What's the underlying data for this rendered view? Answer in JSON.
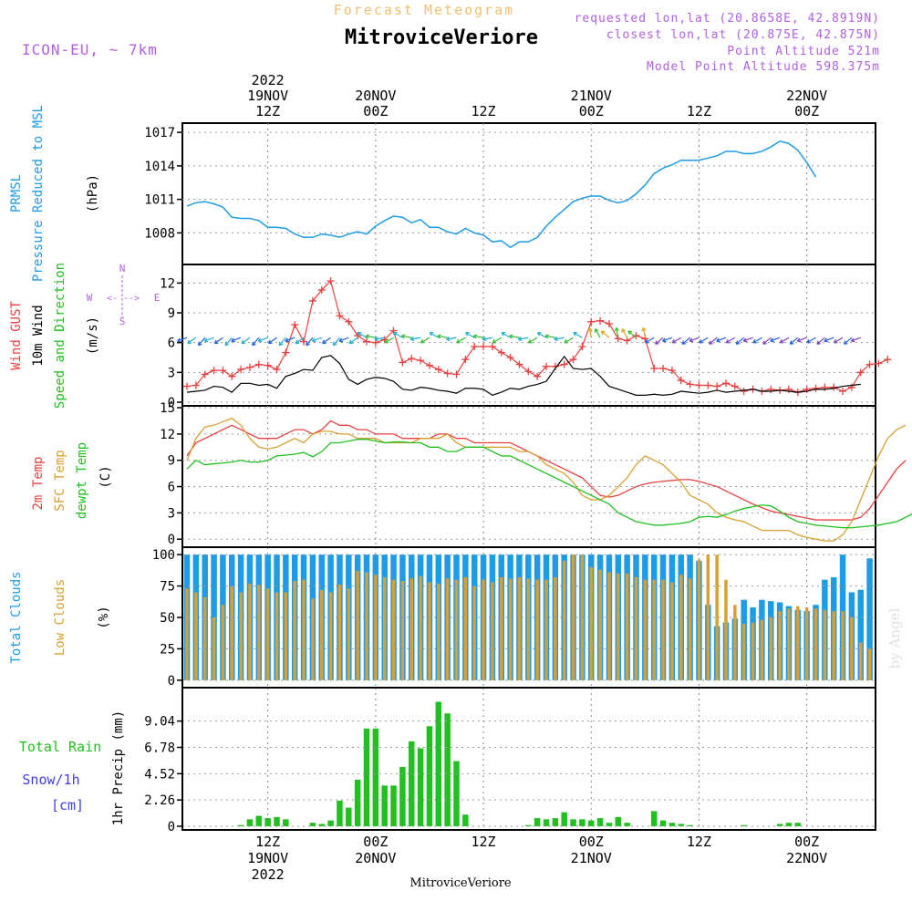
{
  "header": {
    "title": "MitroviceVeriore",
    "subtitle": "Forecast Meteogram",
    "model": "ICON-EU, ~ 7km",
    "requested": "requested lon,lat (20.8658E, 42.8919N)",
    "closest": "closest lon,lat (20.875E, 42.875N)",
    "closest_partial": "closest lon,lat (20.875E, 42.875N)",
    "point_alt": "Point Altitude 521m",
    "model_alt": "Model Point Altitude 598.375m",
    "footer": "MitroviceVeriore",
    "watermark": "by Angel",
    "colors": {
      "blue": "#1e9be6",
      "orange": "#f0c070",
      "purple": "#b060e0",
      "red": "#e84040",
      "green": "#20c020",
      "black": "#000000"
    }
  },
  "axes": {
    "top_year": "2022",
    "top_ticks": [
      {
        "h": 9,
        "day": "19NOV",
        "hour": "12Z"
      },
      {
        "h": 21,
        "day": "20NOV",
        "hour": "00Z"
      },
      {
        "h": 33,
        "day": "",
        "hour": "12Z"
      },
      {
        "h": 45,
        "day": "21NOV",
        "hour": "00Z"
      },
      {
        "h": 57,
        "day": "",
        "hour": "12Z"
      },
      {
        "h": 69,
        "day": "22NOV",
        "hour": "00Z"
      }
    ],
    "bottom_ticks": [
      {
        "h": 9,
        "hour": "12Z",
        "day": "19NOV"
      },
      {
        "h": 21,
        "hour": "00Z",
        "day": "20NOV"
      },
      {
        "h": 33,
        "hour": "12Z",
        "day": ""
      },
      {
        "h": 45,
        "hour": "00Z",
        "day": "21NOV"
      },
      {
        "h": 57,
        "hour": "12Z",
        "day": ""
      },
      {
        "h": 69,
        "hour": "00Z",
        "day": "22NOV"
      }
    ],
    "bottom_year": "2022"
  },
  "chart_data": [
    {
      "type": "line",
      "panel": "pressure",
      "ylabels": [
        "PRMSL",
        "Pressure Reduced to MSL",
        "(hPa)"
      ],
      "ylim": [
        1005.5,
        1017.5
      ],
      "yticks": [
        1008,
        1011,
        1014,
        1017
      ],
      "x_hours": [
        0,
        1,
        2,
        3,
        4,
        5,
        6,
        7,
        8,
        9,
        10,
        11,
        12,
        13,
        14,
        15,
        16,
        17,
        18,
        19,
        20,
        21,
        22,
        23,
        24,
        25,
        26,
        27,
        28,
        29,
        30,
        31,
        32,
        33,
        34,
        35,
        36,
        37,
        38,
        39,
        40,
        41,
        42,
        43,
        44,
        45,
        46,
        47,
        48,
        49,
        50,
        51,
        52,
        53,
        54,
        55,
        56,
        57,
        58,
        59,
        60,
        61,
        62,
        63,
        64,
        65,
        66,
        67,
        68,
        69,
        70,
        71,
        72,
        73,
        74,
        75,
        76
      ],
      "series": [
        {
          "color": "#1e9be6",
          "values": [
            1010.4,
            1010.7,
            1010.8,
            1010.6,
            1010.3,
            1009.4,
            1009.3,
            1009.3,
            1009.1,
            1008.5,
            1008.5,
            1008.4,
            1007.9,
            1007.6,
            1007.6,
            1007.9,
            1007.8,
            1007.6,
            1007.9,
            1008.1,
            1007.9,
            1008.6,
            1009.1,
            1009.5,
            1009.4,
            1008.9,
            1009.2,
            1008.5,
            1008.5,
            1008.1,
            1007.9,
            1008.4,
            1008.0,
            1007.8,
            1007.2,
            1007.3,
            1006.7,
            1007.2,
            1007.2,
            1007.6,
            1008.6,
            1009.4,
            1010.1,
            1010.8,
            1011.1,
            1011.3,
            1011.3,
            1010.9,
            1010.7,
            1010.9,
            1011.5,
            1012.3,
            1013.3,
            1013.8,
            1014.1,
            1014.5,
            1014.5,
            1014.5,
            1014.7,
            1014.9,
            1015.3,
            1015.3,
            1015.1,
            1015.1,
            1015.3,
            1015.7,
            1016.2,
            1016.0,
            1015.4,
            1014.3,
            1013.0
          ]
        }
      ]
    },
    {
      "type": "line",
      "panel": "wind",
      "ylabels": [
        "Wind GUST",
        "10m Wind",
        "Speed and Direction",
        "(m/s)"
      ],
      "compass": {
        "n": "N",
        "s": "S",
        "w": "W",
        "e": "E"
      },
      "ylim": [
        0,
        13.5
      ],
      "yticks": [
        0,
        3,
        6,
        9,
        12
      ],
      "series": [
        {
          "name": "Wind GUST",
          "color": "#e84040",
          "marker": "+",
          "values": [
            1.6,
            1.7,
            2.8,
            3.2,
            3.2,
            2.6,
            3.3,
            3.5,
            3.8,
            3.7,
            3.3,
            5.0,
            7.8,
            6.1,
            10.2,
            11.3,
            12.2,
            8.7,
            8.1,
            6.7,
            6.1,
            6.0,
            6.3,
            7.2,
            4.0,
            4.4,
            4.2,
            3.7,
            3.3,
            2.9,
            2.8,
            4.3,
            5.6,
            5.6,
            5.6,
            5.0,
            4.5,
            3.8,
            3.1,
            2.6,
            3.6,
            3.6,
            3.8,
            4.3,
            5.6,
            8.1,
            8.2,
            7.9,
            6.4,
            6.2,
            6.7,
            6.4,
            3.4,
            3.4,
            3.2,
            2.2,
            1.8,
            1.7,
            1.7,
            1.6,
            1.9,
            1.6,
            1.1,
            1.3,
            1.1,
            1.3,
            1.2,
            1.3,
            1.0,
            1.3,
            1.4,
            1.5,
            1.5,
            1.1,
            1.5,
            3.0,
            3.8,
            3.9,
            4.3
          ]
        },
        {
          "name": "10m Wind",
          "color": "#000000",
          "values": [
            1.0,
            1.1,
            1.2,
            1.6,
            1.5,
            1.0,
            1.9,
            1.9,
            1.7,
            1.8,
            1.4,
            2.6,
            2.9,
            3.3,
            3.2,
            4.5,
            4.7,
            3.9,
            2.3,
            1.8,
            2.3,
            2.5,
            2.4,
            2.1,
            1.3,
            1.2,
            1.5,
            1.4,
            1.2,
            1.1,
            0.9,
            1.4,
            1.4,
            1.3,
            0.7,
            1.0,
            1.4,
            1.3,
            1.6,
            1.8,
            2.1,
            3.4,
            4.6,
            3.4,
            3.3,
            3.4,
            2.6,
            1.6,
            1.3,
            1.0,
            0.7,
            0.7,
            0.8,
            0.7,
            0.8,
            1.1,
            1.0,
            0.9,
            1.0,
            1.2,
            1.0,
            1.1,
            1.2,
            1.3,
            1.1,
            1.1,
            1.2,
            1.1,
            1.0,
            1.1,
            1.3,
            1.3,
            1.4,
            1.6,
            1.7,
            1.8
          ]
        },
        {
          "name": "Speed and Direction",
          "color": "#20c020",
          "type": "arrows",
          "note": "direction arrows along 6.5 m/s line"
        }
      ]
    },
    {
      "type": "line",
      "panel": "temperature",
      "ylabels": [
        "2m Temp",
        "SFC Temp",
        "dewpt Temp",
        "(C)"
      ],
      "ylim": [
        -0.5,
        14.8
      ],
      "yticks": [
        0,
        3,
        6,
        9,
        12,
        15
      ],
      "series": [
        {
          "name": "2m Temp",
          "color": "#e84040",
          "values": [
            9.5,
            11.0,
            11.5,
            12.0,
            12.5,
            13.0,
            12.5,
            12.0,
            11.5,
            11.5,
            11.5,
            12.0,
            12.5,
            12.5,
            12.0,
            12.5,
            13.5,
            13.0,
            13.0,
            12.5,
            12.5,
            12.0,
            12.0,
            12.0,
            11.5,
            11.5,
            11.5,
            11.5,
            12.0,
            12.0,
            11.5,
            11.5,
            11.0,
            11.0,
            11.0,
            11.0,
            11.0,
            10.5,
            10.0,
            9.5,
            9.0,
            8.5,
            8.0,
            7.5,
            7.0,
            6.0,
            5.0,
            4.8,
            5.0,
            5.5,
            6.0,
            6.3,
            6.5,
            6.6,
            6.7,
            6.8,
            6.8,
            6.6,
            6.3,
            6.0,
            5.5,
            5.0,
            4.5,
            4.0,
            3.6,
            3.2,
            3.0,
            2.8,
            2.6,
            2.4,
            2.2,
            2.2,
            2.2,
            2.2,
            2.2,
            2.5,
            3.5,
            5.0,
            6.5,
            8.0,
            9.0
          ]
        },
        {
          "name": "SFC Temp",
          "color": "#d8a030",
          "values": [
            9.0,
            11.5,
            12.8,
            13.0,
            13.4,
            13.8,
            13.0,
            11.5,
            10.5,
            10.3,
            10.5,
            11.0,
            11.5,
            11.0,
            12.0,
            12.3,
            12.3,
            12.0,
            12.0,
            11.5,
            11.5,
            11.5,
            11.0,
            11.0,
            11.0,
            11.0,
            11.5,
            11.5,
            11.5,
            12.0,
            11.0,
            10.5,
            10.5,
            10.5,
            10.5,
            10.5,
            10.5,
            10.0,
            10.0,
            9.5,
            8.5,
            8.0,
            7.5,
            6.5,
            5.0,
            4.5,
            4.5,
            5.0,
            6.0,
            7.0,
            8.5,
            9.5,
            9.0,
            8.5,
            7.5,
            6.5,
            5.0,
            4.5,
            4.0,
            3.0,
            2.5,
            2.2,
            2.0,
            1.5,
            1.0,
            1.0,
            1.0,
            1.0,
            0.5,
            0.2,
            0.0,
            -0.2,
            -0.2,
            0.5,
            2.0,
            4.5,
            7.0,
            9.5,
            11.5,
            12.5,
            13.0
          ]
        },
        {
          "name": "dewpt Temp",
          "color": "#20c020",
          "values": [
            8.0,
            9.0,
            8.5,
            8.6,
            8.7,
            8.8,
            9.0,
            8.8,
            8.8,
            9.0,
            9.5,
            9.6,
            9.7,
            9.9,
            9.4,
            10.0,
            11.0,
            11.0,
            11.2,
            11.4,
            11.4,
            11.2,
            11.0,
            11.1,
            11.1,
            11.0,
            11.0,
            10.5,
            10.5,
            10.0,
            10.0,
            10.5,
            10.5,
            10.5,
            10.0,
            9.5,
            9.5,
            9.0,
            8.5,
            8.0,
            7.5,
            7.0,
            6.5,
            6.0,
            5.5,
            5.0,
            4.5,
            4.0,
            3.0,
            2.5,
            2.0,
            1.8,
            1.6,
            1.6,
            1.7,
            1.8,
            2.0,
            2.5,
            2.6,
            2.5,
            2.8,
            3.2,
            3.5,
            3.7,
            3.9,
            3.8,
            3.2,
            2.5,
            2.0,
            1.8,
            1.6,
            1.5,
            1.4,
            1.3,
            1.3,
            1.4,
            1.5,
            1.6,
            1.8,
            2.0,
            2.5,
            3.0,
            3.8,
            4.3,
            4.6
          ]
        }
      ]
    },
    {
      "type": "bar",
      "panel": "clouds",
      "ylabels": [
        "Total Clouds",
        "Low Clouds",
        "(%)"
      ],
      "ylim": [
        -3,
        103
      ],
      "yticks": [
        0,
        25,
        50,
        75,
        100
      ],
      "series": [
        {
          "name": "Total Clouds",
          "color": "#1e9be6",
          "values": [
            100,
            100,
            100,
            100,
            100,
            100,
            100,
            100,
            100,
            100,
            100,
            100,
            100,
            100,
            100,
            100,
            100,
            100,
            100,
            100,
            100,
            100,
            100,
            100,
            100,
            100,
            100,
            100,
            100,
            100,
            100,
            100,
            100,
            100,
            100,
            100,
            100,
            100,
            100,
            100,
            100,
            100,
            100,
            100,
            100,
            100,
            100,
            100,
            100,
            100,
            100,
            100,
            100,
            100,
            100,
            100,
            100,
            95,
            60,
            43,
            46,
            49,
            64,
            58,
            64,
            63,
            62,
            59,
            56,
            55,
            60,
            80,
            82,
            100,
            70,
            72,
            97
          ]
        },
        {
          "name": "Low Clouds",
          "color": "#d8a030",
          "values": [
            73,
            70,
            66,
            50,
            60,
            75,
            70,
            77,
            76,
            73,
            70,
            70,
            79,
            80,
            65,
            72,
            70,
            76,
            73,
            87,
            86,
            84,
            82,
            80,
            79,
            81,
            83,
            78,
            77,
            81,
            80,
            82,
            75,
            80,
            78,
            82,
            81,
            82,
            81,
            80,
            80,
            82,
            95,
            100,
            100,
            90,
            88,
            86,
            85,
            85,
            82,
            80,
            80,
            80,
            78,
            84,
            81,
            96,
            100,
            100,
            80,
            60,
            45,
            46,
            48,
            50,
            55,
            57,
            59,
            58,
            57,
            56,
            55,
            55,
            50,
            30,
            25,
            40
          ]
        }
      ]
    },
    {
      "type": "bar",
      "panel": "precip",
      "ylabels": [
        "Total Rain",
        "Snow/1h",
        "[cm]",
        "1hr Precip (mm)"
      ],
      "ylim": [
        0,
        11.6
      ],
      "yticks": [
        0,
        2.26,
        4.52,
        6.78,
        9.04
      ],
      "ytick_labels": [
        "0",
        "2.26",
        "4.52",
        "6.78",
        "9.04"
      ],
      "series": [
        {
          "name": "Total Rain",
          "color": "#20c020",
          "values": [
            0.0,
            0.0,
            0.0,
            0.0,
            0.0,
            0.0,
            0.1,
            0.6,
            0.9,
            0.7,
            0.8,
            0.6,
            0.0,
            0.0,
            0.3,
            0.2,
            0.5,
            2.2,
            1.6,
            4.0,
            8.4,
            8.4,
            3.5,
            3.5,
            5.1,
            7.3,
            6.7,
            8.6,
            10.7,
            9.7,
            5.6,
            1.0,
            0.0,
            0.0,
            0.0,
            0.0,
            0.0,
            0.0,
            0.1,
            0.7,
            0.6,
            0.7,
            1.2,
            0.6,
            0.6,
            0.5,
            0.7,
            0.3,
            0.8,
            0.3,
            0.0,
            0.0,
            1.3,
            0.5,
            0.3,
            0.2,
            0.1,
            0.0,
            0.0,
            0.0,
            0.0,
            0.0,
            0.1,
            0.0,
            0.0,
            0.0,
            0.2,
            0.3,
            0.3,
            0.0,
            0.0,
            0.0,
            0.0,
            0.0,
            0.0,
            0.0,
            0.0,
            0.0,
            0.0,
            0.0
          ]
        }
      ]
    }
  ]
}
